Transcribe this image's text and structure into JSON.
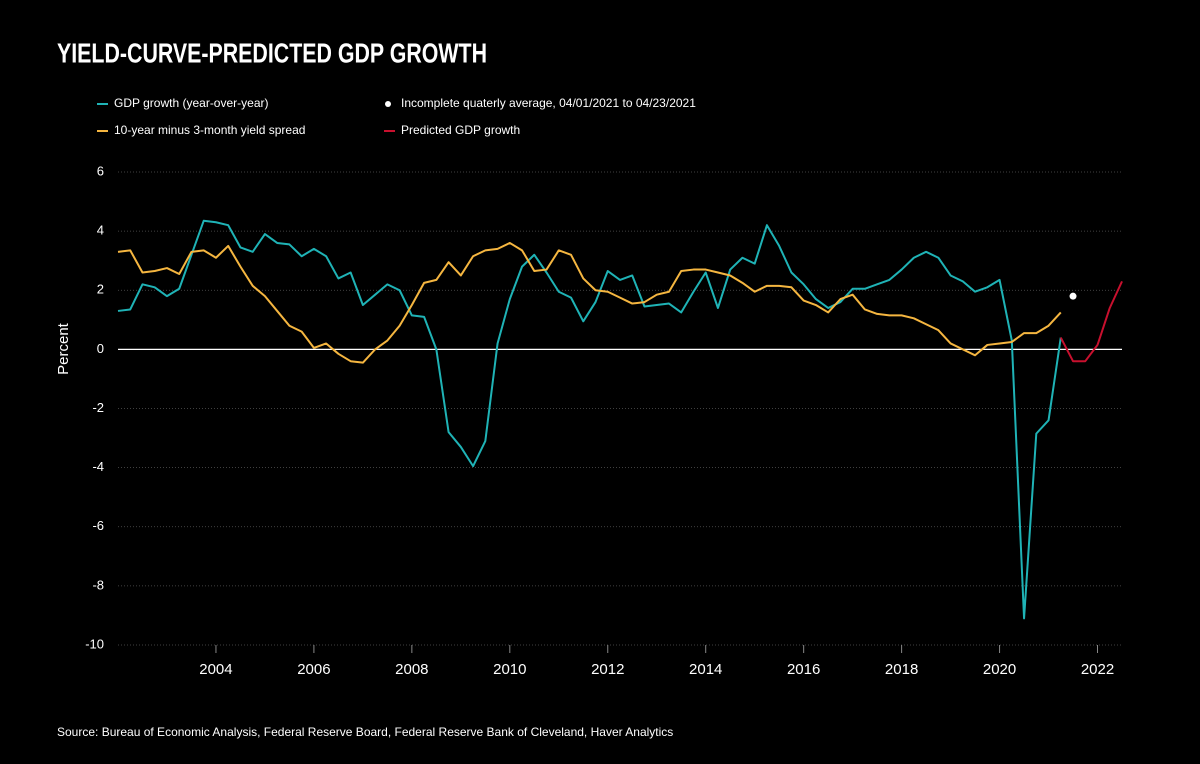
{
  "chart_data": {
    "type": "line",
    "title": "YIELD-CURVE-PREDICTED GDP GROWTH",
    "y_label": "Percent",
    "source": "Source: Bureau of Economic Analysis, Federal Reserve Board, Federal Reserve Bank of Cleveland, Haver Analytics",
    "x": [
      2002,
      2002.25,
      2002.5,
      2002.75,
      2003,
      2003.25,
      2003.5,
      2003.75,
      2004,
      2004.25,
      2004.5,
      2004.75,
      2005,
      2005.25,
      2005.5,
      2005.75,
      2006,
      2006.25,
      2006.5,
      2006.75,
      2007,
      2007.25,
      2007.5,
      2007.75,
      2008,
      2008.25,
      2008.5,
      2008.75,
      2009,
      2009.25,
      2009.5,
      2009.75,
      2010,
      2010.25,
      2010.5,
      2010.75,
      2011,
      2011.25,
      2011.5,
      2011.75,
      2012,
      2012.25,
      2012.5,
      2012.75,
      2013,
      2013.25,
      2013.5,
      2013.75,
      2014,
      2014.25,
      2014.5,
      2014.75,
      2015,
      2015.25,
      2015.5,
      2015.75,
      2016,
      2016.25,
      2016.5,
      2016.75,
      2017,
      2017.25,
      2017.5,
      2017.75,
      2018,
      2018.25,
      2018.5,
      2018.75,
      2019,
      2019.25,
      2019.5,
      2019.75,
      2020,
      2020.25,
      2020.5,
      2020.75,
      2021,
      2021.25
    ],
    "series": [
      {
        "name": "GDP growth (year-over-year)",
        "color": "#1fb3b6",
        "style": "line",
        "values": [
          1.3,
          1.35,
          2.2,
          2.1,
          1.8,
          2.05,
          3.2,
          4.35,
          4.3,
          4.2,
          3.45,
          3.3,
          3.9,
          3.6,
          3.55,
          3.15,
          3.4,
          3.15,
          2.4,
          2.6,
          1.5,
          1.85,
          2.2,
          2.0,
          1.15,
          1.1,
          0.0,
          -2.8,
          -3.3,
          -3.95,
          -3.1,
          0.2,
          1.7,
          2.8,
          3.2,
          2.6,
          1.95,
          1.75,
          0.95,
          1.6,
          2.65,
          2.35,
          2.5,
          1.45,
          1.5,
          1.55,
          1.25,
          1.95,
          2.6,
          1.4,
          2.7,
          3.1,
          2.9,
          4.2,
          3.5,
          2.6,
          2.2,
          1.7,
          1.4,
          1.6,
          2.05,
          2.05,
          2.2,
          2.35,
          2.7,
          3.1,
          3.3,
          3.1,
          2.5,
          2.3,
          1.95,
          2.1,
          2.35,
          0.3,
          -9.1,
          -2.85,
          -2.4,
          0.4
        ]
      },
      {
        "name": "Incomplete quaterly average, 04/01/2021 to 04/23/2021",
        "color": "#ffffff",
        "style": "marker",
        "x": [
          2021.5
        ],
        "values": [
          1.8
        ]
      },
      {
        "name": "10-year minus 3-month yield spread",
        "color": "#f5b640",
        "style": "line",
        "values": [
          3.3,
          3.35,
          2.6,
          2.65,
          2.75,
          2.55,
          3.3,
          3.35,
          3.1,
          3.5,
          2.8,
          2.15,
          1.8,
          1.3,
          0.8,
          0.6,
          0.05,
          0.2,
          -0.15,
          -0.4,
          -0.45,
          0.0,
          0.3,
          0.8,
          1.5,
          2.25,
          2.35,
          2.95,
          2.5,
          3.15,
          3.35,
          3.4,
          3.6,
          3.35,
          2.65,
          2.7,
          3.35,
          3.2,
          2.4,
          2.0,
          1.95,
          1.75,
          1.55,
          1.6,
          1.85,
          1.95,
          2.65,
          2.7,
          2.7,
          2.6,
          2.5,
          2.25,
          1.95,
          2.15,
          2.15,
          2.1,
          1.65,
          1.5,
          1.25,
          1.7,
          1.85,
          1.35,
          1.2,
          1.15,
          1.15,
          1.05,
          0.85,
          0.65,
          0.2,
          0.0,
          -0.2,
          0.15,
          0.2,
          0.25,
          0.55,
          0.55,
          0.8,
          1.25
        ]
      },
      {
        "name": "Predicted GDP growth",
        "color": "#c8102e",
        "style": "line",
        "x": [
          2021.25,
          2021.5,
          2021.75,
          2022,
          2022.25,
          2022.5
        ],
        "values": [
          0.4,
          -0.4,
          -0.4,
          0.15,
          1.4,
          2.3
        ]
      }
    ],
    "xlim": [
      2002,
      2022.5
    ],
    "xticks": [
      2004,
      2006,
      2008,
      2010,
      2012,
      2014,
      2016,
      2018,
      2020,
      2022
    ],
    "ylim": [
      -10,
      6
    ],
    "yticks": [
      -10,
      -8,
      -6,
      -4,
      -2,
      0,
      2,
      4,
      6
    ],
    "grid": true
  }
}
